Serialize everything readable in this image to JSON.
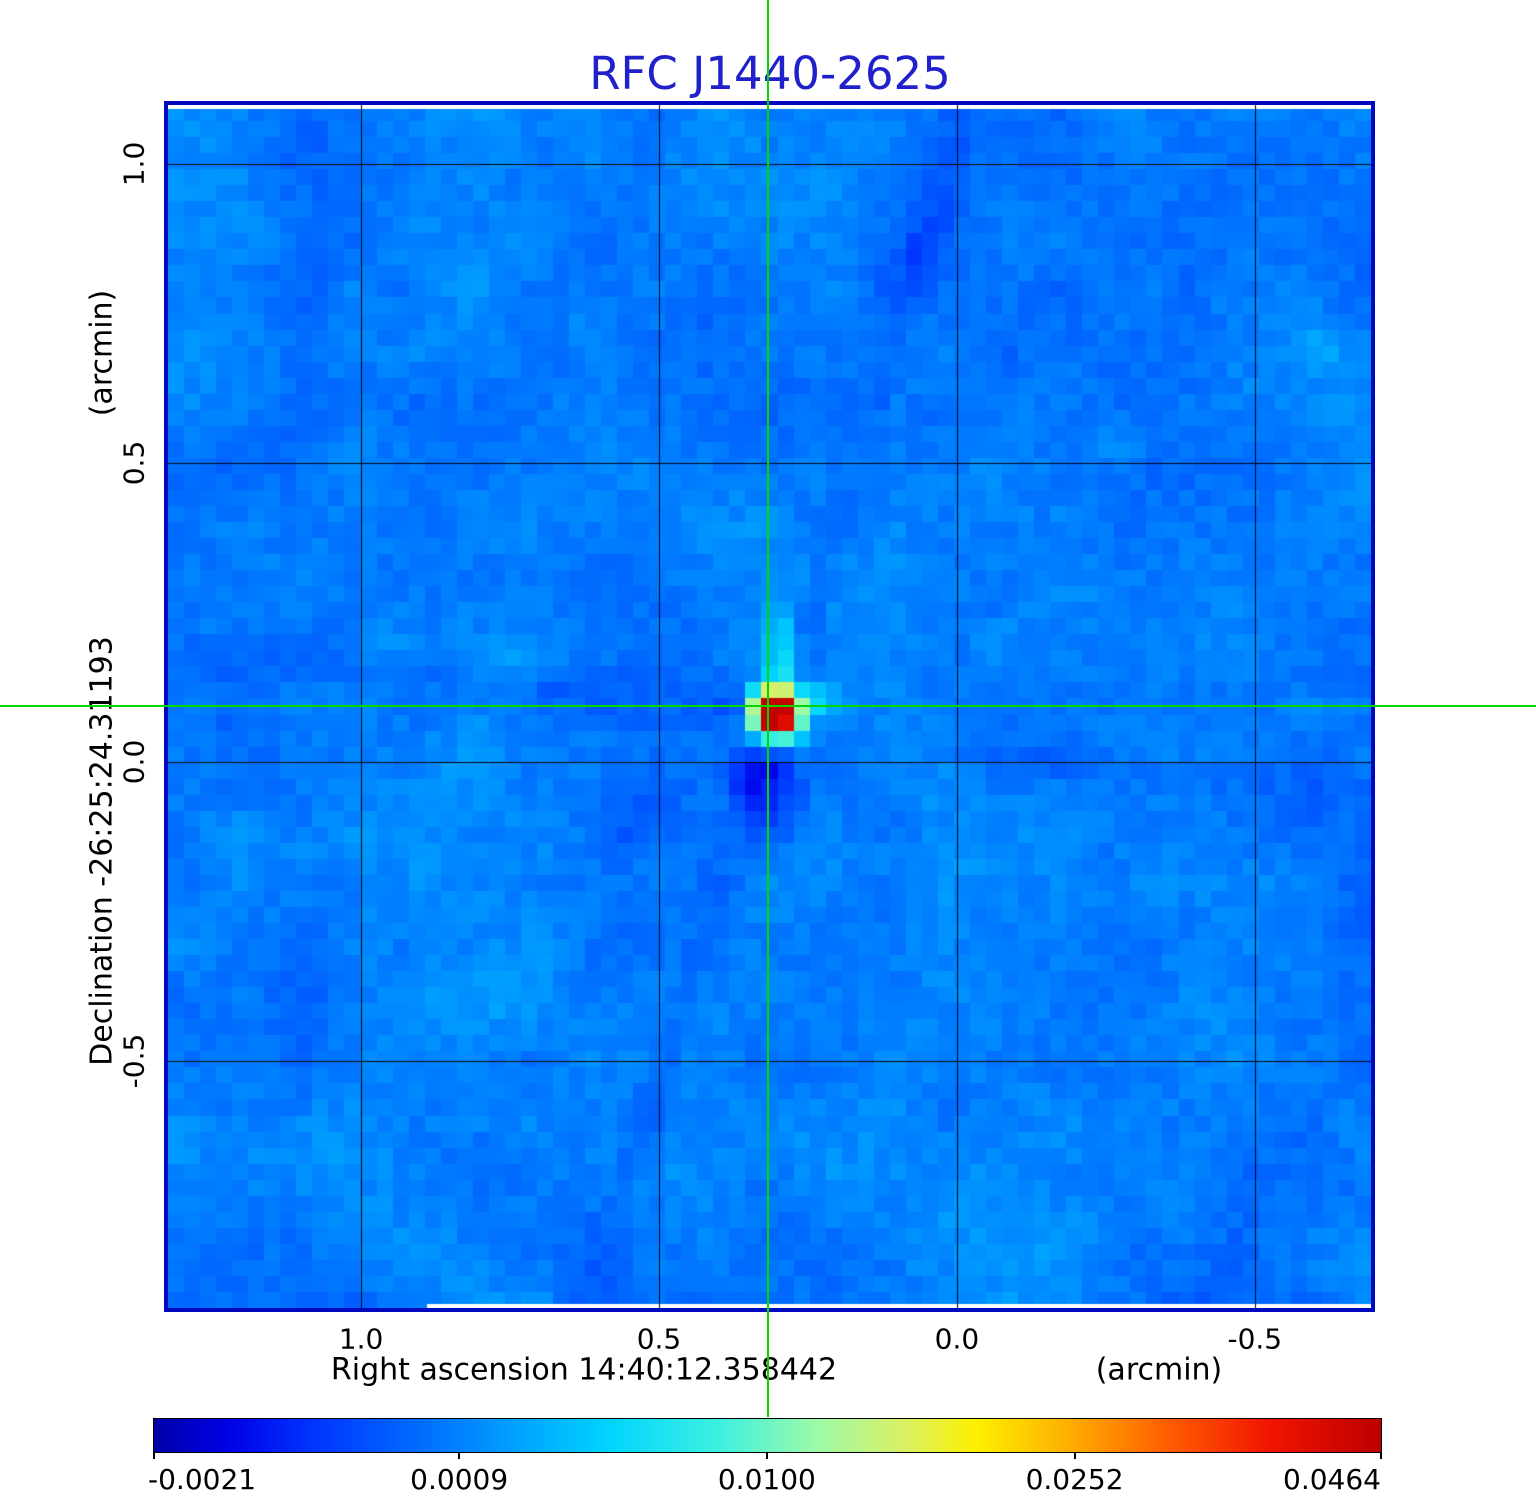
{
  "title": {
    "text": "RFC J1440-2625",
    "color": "#2121cc"
  },
  "axes": {
    "x": {
      "title": "Right ascension  14:40:12.358442",
      "unit": "(arcmin)",
      "tick_labels": [
        "1.0",
        "0.5",
        "0.0",
        "-0.5"
      ],
      "tick_values": [
        1.0,
        0.5,
        0.0,
        -0.5
      ],
      "range": [
        1.324,
        -0.695
      ]
    },
    "y": {
      "title": "Declination  -26:25:24.31193",
      "unit": "(arcmin)",
      "tick_labels": [
        "1.0",
        "0.5",
        "0.0",
        "-0.5"
      ],
      "tick_values": [
        1.0,
        0.5,
        0.0,
        -0.5
      ],
      "range": [
        1.099,
        -0.913
      ]
    }
  },
  "colorbar": {
    "tick_labels": [
      "-0.0021",
      "0.0009",
      "0.0100",
      "0.0252",
      "0.0464"
    ],
    "tick_values": [
      -0.0021,
      0.0009,
      0.01,
      0.0252,
      0.0464
    ],
    "scale": "sqrt",
    "vmin": -0.0021,
    "vmax": 0.0464
  },
  "crosshair": {
    "color": "#00d800",
    "x_arcmin": 0.317,
    "y_arcmin": 0.094
  },
  "grid_color": "#000812",
  "frame_color": "#0009bd",
  "chart_data": {
    "type": "heatmap",
    "title": "RFC J1440-2625",
    "xlabel": "Right ascension  14:40:12.358442 (arcmin)",
    "ylabel": "Declination  -26:25:24.31193 (arcmin)",
    "xlim": [
      1.324,
      -0.695
    ],
    "ylim": [
      -0.913,
      1.099
    ],
    "x_ticks": [
      1.0,
      0.5,
      0.0,
      -0.5
    ],
    "y_ticks": [
      1.0,
      0.5,
      0.0,
      -0.5
    ],
    "grid": true,
    "legend_position": "none",
    "intensity_scale": {
      "type": "sqrt",
      "vmin": -0.0021,
      "vmax": 0.0464,
      "colorbar_position": "bottom",
      "colorbar_ticks": [
        -0.0021,
        0.0009,
        0.01,
        0.0252,
        0.0464
      ]
    },
    "peak_source": {
      "name": "RFC J1440-2625",
      "x_arcmin": 0.317,
      "y_arcmin": 0.094,
      "peak_value": 0.0464,
      "marked_by": "green crosshair spanning full figure"
    },
    "background": {
      "typical_value_range": [
        -0.001,
        0.003
      ],
      "appearance": "speckled blue noise field of ~16px cells"
    },
    "features": [
      "compact bright source (red core, orange-yellow ring, cyan halo) at crosshair",
      "dark-blue negative bowl immediately below the source",
      "cyan plume extending upward from the source",
      "steep dark sidelobe streak through source toward upper-right and lower-left",
      "near-horizontal dark streaks from left edge to source and from source to right edge",
      "faint radial sidelobe rays from the source"
    ],
    "colormap_stops": [
      [
        0.0,
        "#0000a8"
      ],
      [
        0.06,
        "#0000e6"
      ],
      [
        0.13,
        "#0034ff"
      ],
      [
        0.25,
        "#0082ff"
      ],
      [
        0.37,
        "#00d4ff"
      ],
      [
        0.46,
        "#3cf0e0"
      ],
      [
        0.54,
        "#9cfaa8"
      ],
      [
        0.61,
        "#d8f066"
      ],
      [
        0.67,
        "#fcf000"
      ],
      [
        0.75,
        "#ffaa00"
      ],
      [
        0.83,
        "#ff5a00"
      ],
      [
        0.91,
        "#f01400"
      ],
      [
        1.0,
        "#bc0000"
      ]
    ]
  }
}
